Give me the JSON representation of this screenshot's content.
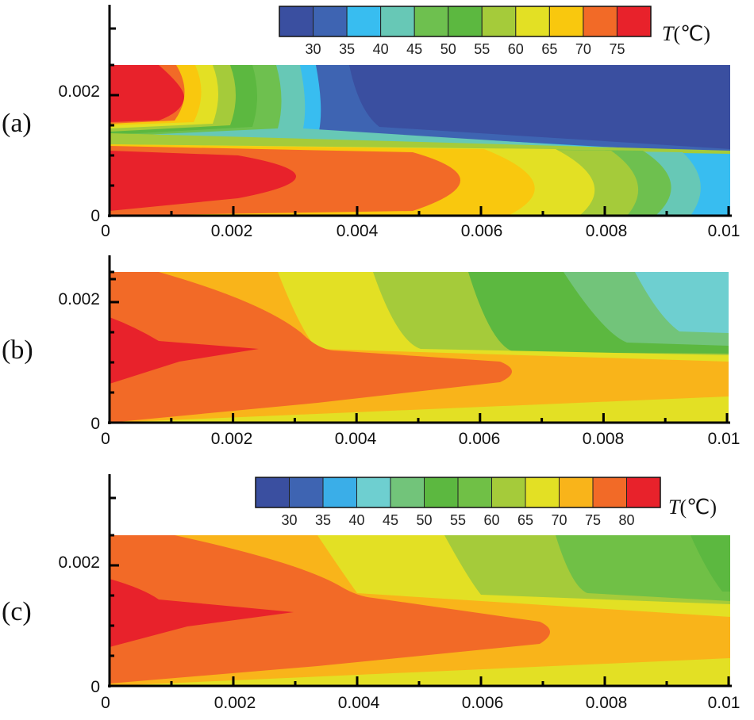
{
  "chart_data": [
    {
      "type": "heatmap",
      "panel_label": "(a)",
      "xlim": [
        0,
        0.01
      ],
      "ylim": [
        0,
        0.0025
      ],
      "x_ticks": [
        "0",
        "0.002",
        "0.004",
        "0.006",
        "0.008",
        "0.01"
      ],
      "y_ticks": [
        "0",
        "0.002"
      ],
      "colorbar": {
        "title": "T(℃)",
        "title_italic": "T",
        "title_unit": "(℃)",
        "labels": [
          "30",
          "35",
          "40",
          "45",
          "50",
          "55",
          "60",
          "65",
          "70",
          "75"
        ],
        "colors": [
          "#3a4fa0",
          "#3e64b2",
          "#38bdf0",
          "#67c8b6",
          "#6ec04f",
          "#5cb840",
          "#a5cb3a",
          "#e3e024",
          "#f9c80e",
          "#f26a27",
          "#e8222b"
        ]
      }
    },
    {
      "type": "heatmap",
      "panel_label": "(b)",
      "xlim": [
        0,
        0.01
      ],
      "ylim": [
        0,
        0.0025
      ],
      "x_ticks": [
        "0",
        "0.002",
        "0.004",
        "0.006",
        "0.008",
        "0.01"
      ],
      "y_ticks": [
        "0",
        "0.002"
      ]
    },
    {
      "type": "heatmap",
      "panel_label": "(c)",
      "xlim": [
        0,
        0.01
      ],
      "ylim": [
        0,
        0.0025
      ],
      "x_ticks": [
        "0",
        "0.002",
        "0.004",
        "0.006",
        "0.008",
        "0.01"
      ],
      "y_ticks": [
        "0",
        "0.002"
      ],
      "colorbar": {
        "title": "T(℃)",
        "title_italic": "T",
        "title_unit": "(℃)",
        "labels": [
          "30",
          "35",
          "40",
          "45",
          "50",
          "55",
          "60",
          "65",
          "70",
          "75",
          "80"
        ],
        "colors": [
          "#3a4fa0",
          "#3e64b2",
          "#3aaee8",
          "#6ecfd0",
          "#72c47a",
          "#5cb840",
          "#70c046",
          "#a5cb3a",
          "#e3e024",
          "#f9b41a",
          "#f26a27",
          "#e8222b"
        ]
      }
    }
  ]
}
